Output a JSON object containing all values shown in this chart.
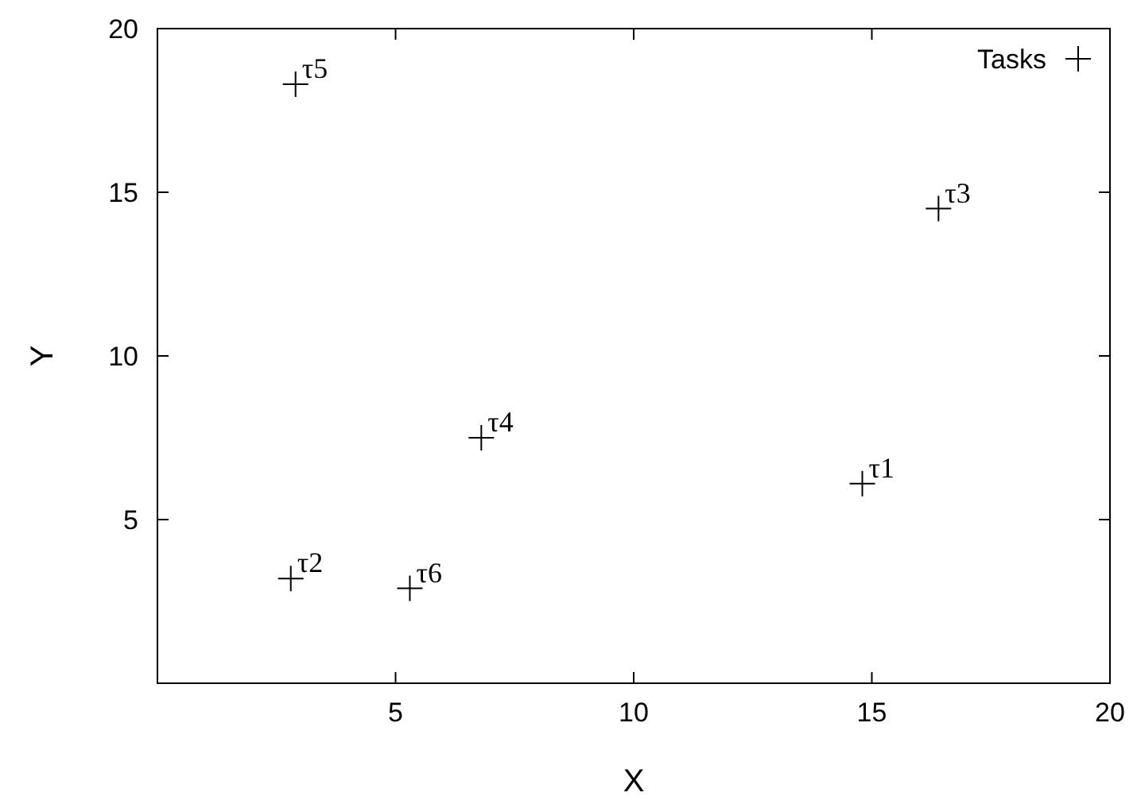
{
  "chart_data": {
    "type": "scatter",
    "xlabel": "X",
    "ylabel": "Y",
    "xlim": [
      0,
      20
    ],
    "ylim": [
      0,
      20
    ],
    "xticks": [
      5,
      10,
      15,
      20
    ],
    "yticks": [
      5,
      10,
      15,
      20
    ],
    "grid": false,
    "legend": "top right",
    "marker": "cross",
    "series": [
      {
        "name": "Tasks",
        "color": "#000000",
        "x": [
          14.8,
          2.8,
          16.4,
          6.8,
          2.9,
          5.3
        ],
        "values": [
          6.1,
          3.2,
          14.5,
          7.5,
          18.3,
          2.9
        ]
      }
    ],
    "annotations": [
      {
        "text": "τ1",
        "x": 14.8,
        "y": 6.1
      },
      {
        "text": "τ2",
        "x": 2.8,
        "y": 3.2
      },
      {
        "text": "τ3",
        "x": 16.4,
        "y": 14.5
      },
      {
        "text": "τ4",
        "x": 6.8,
        "y": 7.5
      },
      {
        "text": "τ5",
        "x": 2.9,
        "y": 18.3
      },
      {
        "text": "τ6",
        "x": 5.3,
        "y": 2.9
      }
    ]
  }
}
